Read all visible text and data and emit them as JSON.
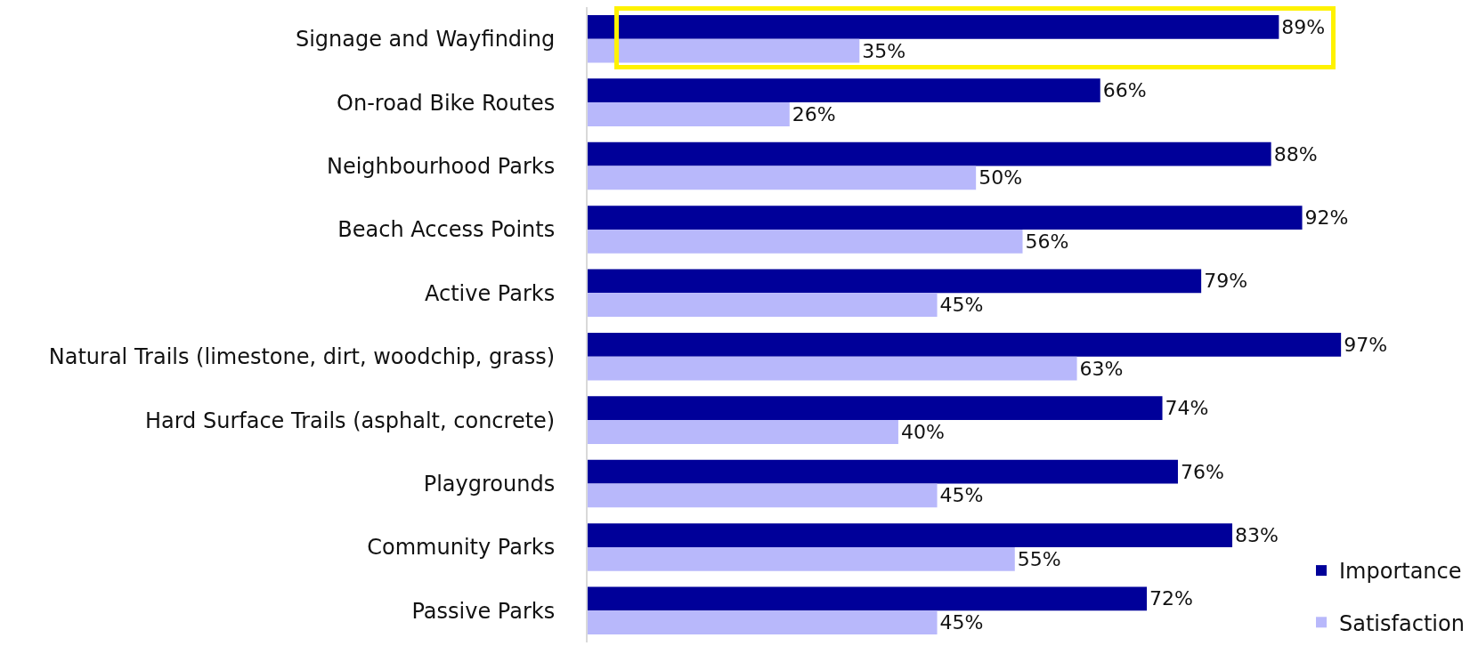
{
  "chart_data": {
    "type": "bar",
    "orientation": "horizontal",
    "tick_labels": "y",
    "legend": "bottom right",
    "categories": [
      "Signage and Wayfinding",
      "On-road Bike Routes",
      "Neighbourhood Parks",
      "Beach Access Points",
      "Active Parks",
      "Natural Trails (limestone, dirt, woodchip, grass)",
      "Hard Surface Trails (asphalt, concrete)",
      "Playgrounds",
      "Community Parks",
      "Passive Parks"
    ],
    "series": [
      {
        "name": "Importance",
        "color": "#000099",
        "values": [
          89,
          66,
          88,
          92,
          79,
          97,
          74,
          76,
          83,
          72
        ],
        "value_labels": [
          "89%",
          "66%",
          "88%",
          "92%",
          "79%",
          "97%",
          "74%",
          "76%",
          "83%",
          "72%"
        ]
      },
      {
        "name": "Satisfaction",
        "color": "#b8b8fb",
        "values": [
          35,
          26,
          50,
          56,
          45,
          63,
          40,
          45,
          55,
          45
        ],
        "value_labels": [
          "35%",
          "26%",
          "50%",
          "56%",
          "45%",
          "63%",
          "40%",
          "45%",
          "55%",
          "45%"
        ]
      }
    ]
  }
}
